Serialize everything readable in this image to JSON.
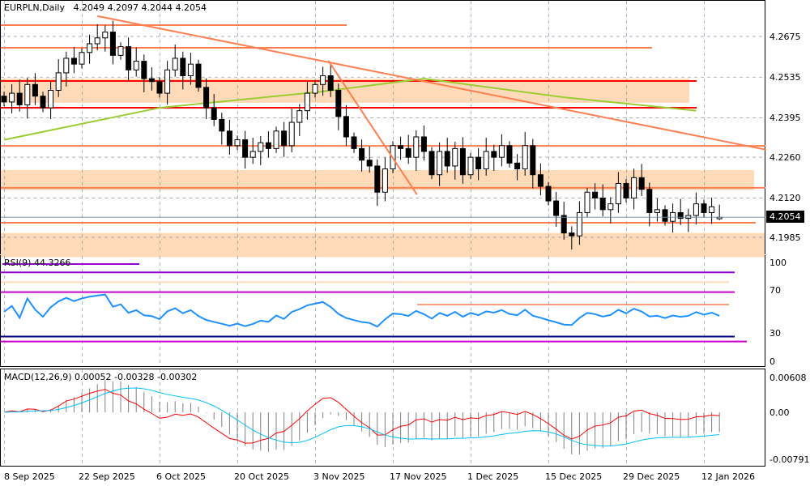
{
  "header": {
    "symbol_tf": "EURPLN,Daily",
    "open": "4.2049",
    "high": "4.2097",
    "low": "4.2044",
    "close": "4.2054"
  },
  "rsi": {
    "label": "RSI(9) 44.3266",
    "axis": [
      "100",
      "70",
      "30",
      "0"
    ]
  },
  "macd": {
    "label": "MACD(12,26,9) 0.00052 -0.00328 -0.00302",
    "axis": [
      "0.00608",
      "0.00",
      "-0.00791"
    ]
  },
  "price_axis": [
    "4.2675",
    "4.2535",
    "4.2395",
    "4.2260",
    "4.2120",
    "4.1985"
  ],
  "last_price": "4.2054",
  "time_axis": [
    "8 Sep 2025",
    "22 Sep 2025",
    "6 Oct 2025",
    "20 Oct 2025",
    "3 Nov 2025",
    "17 Nov 2025",
    "1 Dec 2025",
    "15 Dec 2025",
    "29 Dec 2025",
    "12 Jan 2026"
  ],
  "colors": {
    "bull": "#ffffff",
    "bear": "#000000",
    "level": "#ff7f50",
    "key_level": "#ff0000",
    "zone": "#ffdab9",
    "sma": "#9acd32",
    "rsi": "#1e90ff",
    "macd_main": "#ff0000",
    "macd_signal": "#00bfff"
  },
  "chart_data": {
    "type": "candlestick",
    "symbol": "EURPLN",
    "timeframe": "Daily",
    "closes": [
      4.245,
      4.248,
      4.244,
      4.251,
      4.247,
      4.243,
      4.249,
      4.255,
      4.26,
      4.258,
      4.262,
      4.265,
      4.267,
      4.269,
      4.261,
      4.264,
      4.256,
      4.259,
      4.253,
      4.252,
      4.248,
      4.256,
      4.26,
      4.254,
      4.258,
      4.25,
      4.243,
      4.239,
      4.235,
      4.23,
      4.232,
      4.226,
      4.228,
      4.231,
      4.229,
      4.235,
      4.23,
      4.238,
      4.242,
      4.248,
      4.251,
      4.254,
      4.249,
      4.24,
      4.233,
      4.229,
      4.225,
      4.223,
      4.214,
      4.222,
      4.23,
      4.229,
      4.226,
      4.233,
      4.228,
      4.22,
      4.228,
      4.223,
      4.229,
      4.22,
      4.226,
      4.222,
      4.228,
      4.226,
      4.23,
      4.224,
      4.222,
      4.23,
      4.22,
      4.216,
      4.211,
      4.206,
      4.2,
      4.199,
      4.207,
      4.214,
      4.212,
      4.208,
      4.21,
      4.217,
      4.212,
      4.219,
      4.215,
      4.207,
      4.208,
      4.204,
      4.207,
      4.205,
      4.206,
      4.21,
      4.207,
      4.209,
      4.2054
    ],
    "last_bar": {
      "open": 4.2049,
      "high": 4.2097,
      "low": 4.2044,
      "close": 4.2054
    },
    "horizontal_levels": [
      4.2714,
      4.2636,
      4.2299,
      4.2155,
      4.2035
    ],
    "key_levels": [
      4.2522,
      4.243
    ],
    "zones": [
      [
        4.2447,
        4.253
      ],
      [
        4.2147,
        4.2216
      ],
      [
        4.1917,
        4.2
      ]
    ],
    "trendlines": [
      [
        [
          12,
          4.2745
        ],
        [
          98,
          4.2286
        ]
      ],
      [
        [
          41.7,
          4.2592
        ],
        [
          53.1,
          4.2132
        ]
      ]
    ],
    "sma": [
      [
        0,
        4.232
      ],
      [
        20,
        4.243
      ],
      [
        41,
        4.2486
      ],
      [
        54,
        4.253
      ],
      [
        72,
        4.2466
      ],
      [
        89,
        4.242
      ]
    ],
    "price_range": [
      4.1917,
      4.28
    ],
    "rsi_levels": [
      90,
      80,
      70,
      25,
      20
    ],
    "macd_range": [
      -0.00791,
      0.00608
    ]
  }
}
